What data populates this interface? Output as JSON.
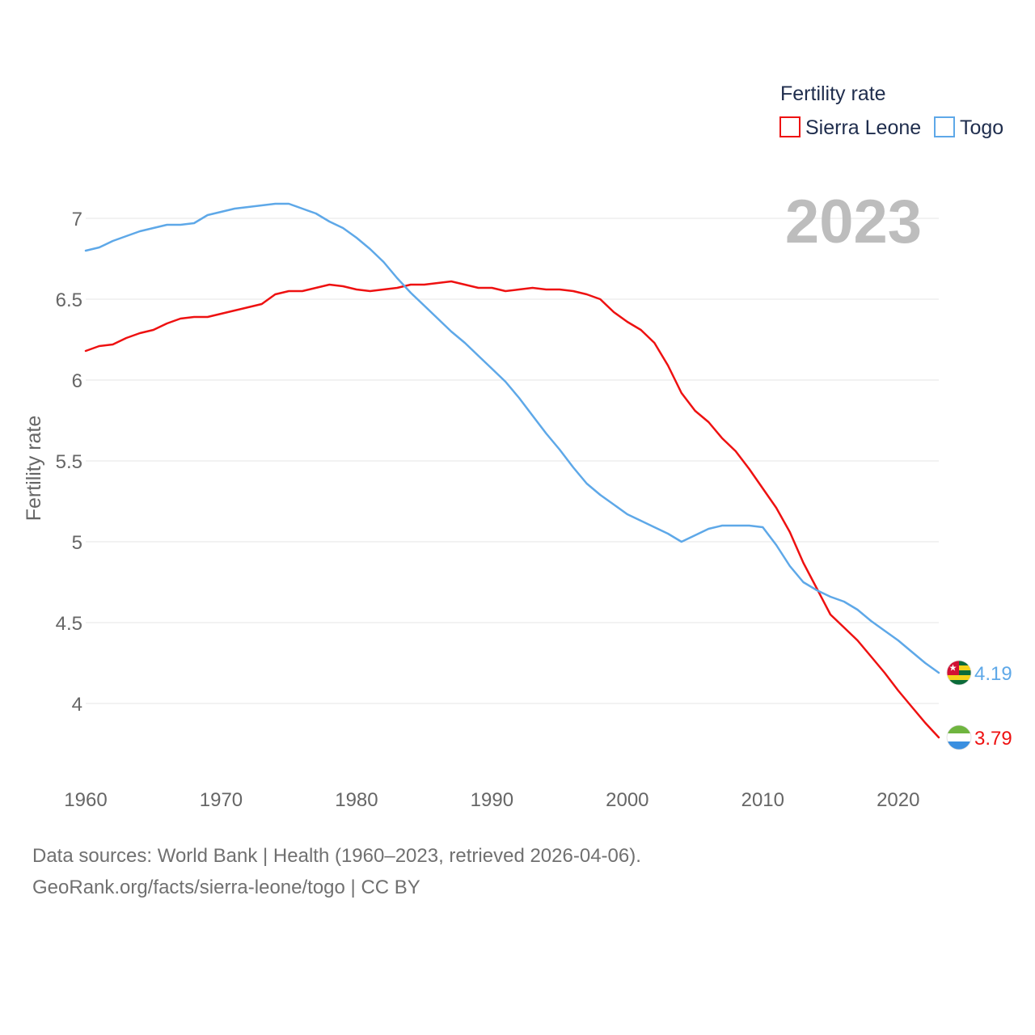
{
  "chart_data": {
    "type": "line",
    "title": "Fertility rate",
    "ylabel": "Fertility rate",
    "xlabel": "",
    "year_display": "2023",
    "xlim": [
      1960,
      2023
    ],
    "ylim": [
      3.5,
      7.35
    ],
    "x_ticks": [
      1960,
      1970,
      1980,
      1990,
      2000,
      2010,
      2020
    ],
    "y_ticks": [
      {
        "value": 4,
        "label": "4"
      },
      {
        "value": 4.5,
        "label": "4.5"
      },
      {
        "value": 5,
        "label": "5"
      },
      {
        "value": 5.5,
        "label": "5.5"
      },
      {
        "value": 6,
        "label": "6"
      },
      {
        "value": 6.5,
        "label": "6.5"
      },
      {
        "value": 7,
        "label": "7"
      }
    ],
    "grid": true,
    "legend_position": "top-right",
    "x": [
      1960,
      1961,
      1962,
      1963,
      1964,
      1965,
      1966,
      1967,
      1968,
      1969,
      1970,
      1971,
      1972,
      1973,
      1974,
      1975,
      1976,
      1977,
      1978,
      1979,
      1980,
      1981,
      1982,
      1983,
      1984,
      1985,
      1986,
      1987,
      1988,
      1989,
      1990,
      1991,
      1992,
      1993,
      1994,
      1995,
      1996,
      1997,
      1998,
      1999,
      2000,
      2001,
      2002,
      2003,
      2004,
      2005,
      2006,
      2007,
      2008,
      2009,
      2010,
      2011,
      2012,
      2013,
      2014,
      2015,
      2016,
      2017,
      2018,
      2019,
      2020,
      2021,
      2022,
      2023
    ],
    "series": [
      {
        "name": "Sierra Leone",
        "color": "#ee1111",
        "end_label": "3.79",
        "flag_icon": "sierra-leone-flag-icon",
        "values": [
          6.18,
          6.21,
          6.22,
          6.26,
          6.29,
          6.31,
          6.35,
          6.38,
          6.39,
          6.39,
          6.41,
          6.43,
          6.45,
          6.47,
          6.53,
          6.55,
          6.55,
          6.57,
          6.59,
          6.58,
          6.56,
          6.55,
          6.56,
          6.57,
          6.59,
          6.59,
          6.6,
          6.61,
          6.59,
          6.57,
          6.57,
          6.55,
          6.56,
          6.57,
          6.56,
          6.56,
          6.55,
          6.53,
          6.5,
          6.42,
          6.36,
          6.31,
          6.23,
          6.09,
          5.92,
          5.81,
          5.74,
          5.64,
          5.56,
          5.45,
          5.33,
          5.21,
          5.06,
          4.87,
          4.71,
          4.55,
          4.47,
          4.39,
          4.29,
          4.19,
          4.08,
          3.98,
          3.88,
          3.79
        ]
      },
      {
        "name": "Togo",
        "color": "#5ea8e8",
        "end_label": "4.19",
        "flag_icon": "togo-flag-icon",
        "values": [
          6.8,
          6.82,
          6.86,
          6.89,
          6.92,
          6.94,
          6.96,
          6.96,
          6.97,
          7.02,
          7.04,
          7.06,
          7.07,
          7.08,
          7.09,
          7.09,
          7.06,
          7.03,
          6.98,
          6.94,
          6.88,
          6.81,
          6.73,
          6.63,
          6.54,
          6.46,
          6.38,
          6.3,
          6.23,
          6.15,
          6.07,
          5.99,
          5.89,
          5.78,
          5.67,
          5.57,
          5.46,
          5.36,
          5.29,
          5.23,
          5.17,
          5.13,
          5.09,
          5.05,
          5.0,
          5.04,
          5.08,
          5.1,
          5.1,
          5.1,
          5.09,
          4.98,
          4.85,
          4.75,
          4.7,
          4.66,
          4.63,
          4.58,
          4.51,
          4.45,
          4.39,
          4.32,
          4.25,
          4.19
        ]
      }
    ]
  },
  "footer": {
    "line1": "Data sources: World Bank | Health (1960–2023, retrieved 2026-04-06).",
    "line2": "GeoRank.org/facts/sierra-leone/togo | CC BY"
  }
}
